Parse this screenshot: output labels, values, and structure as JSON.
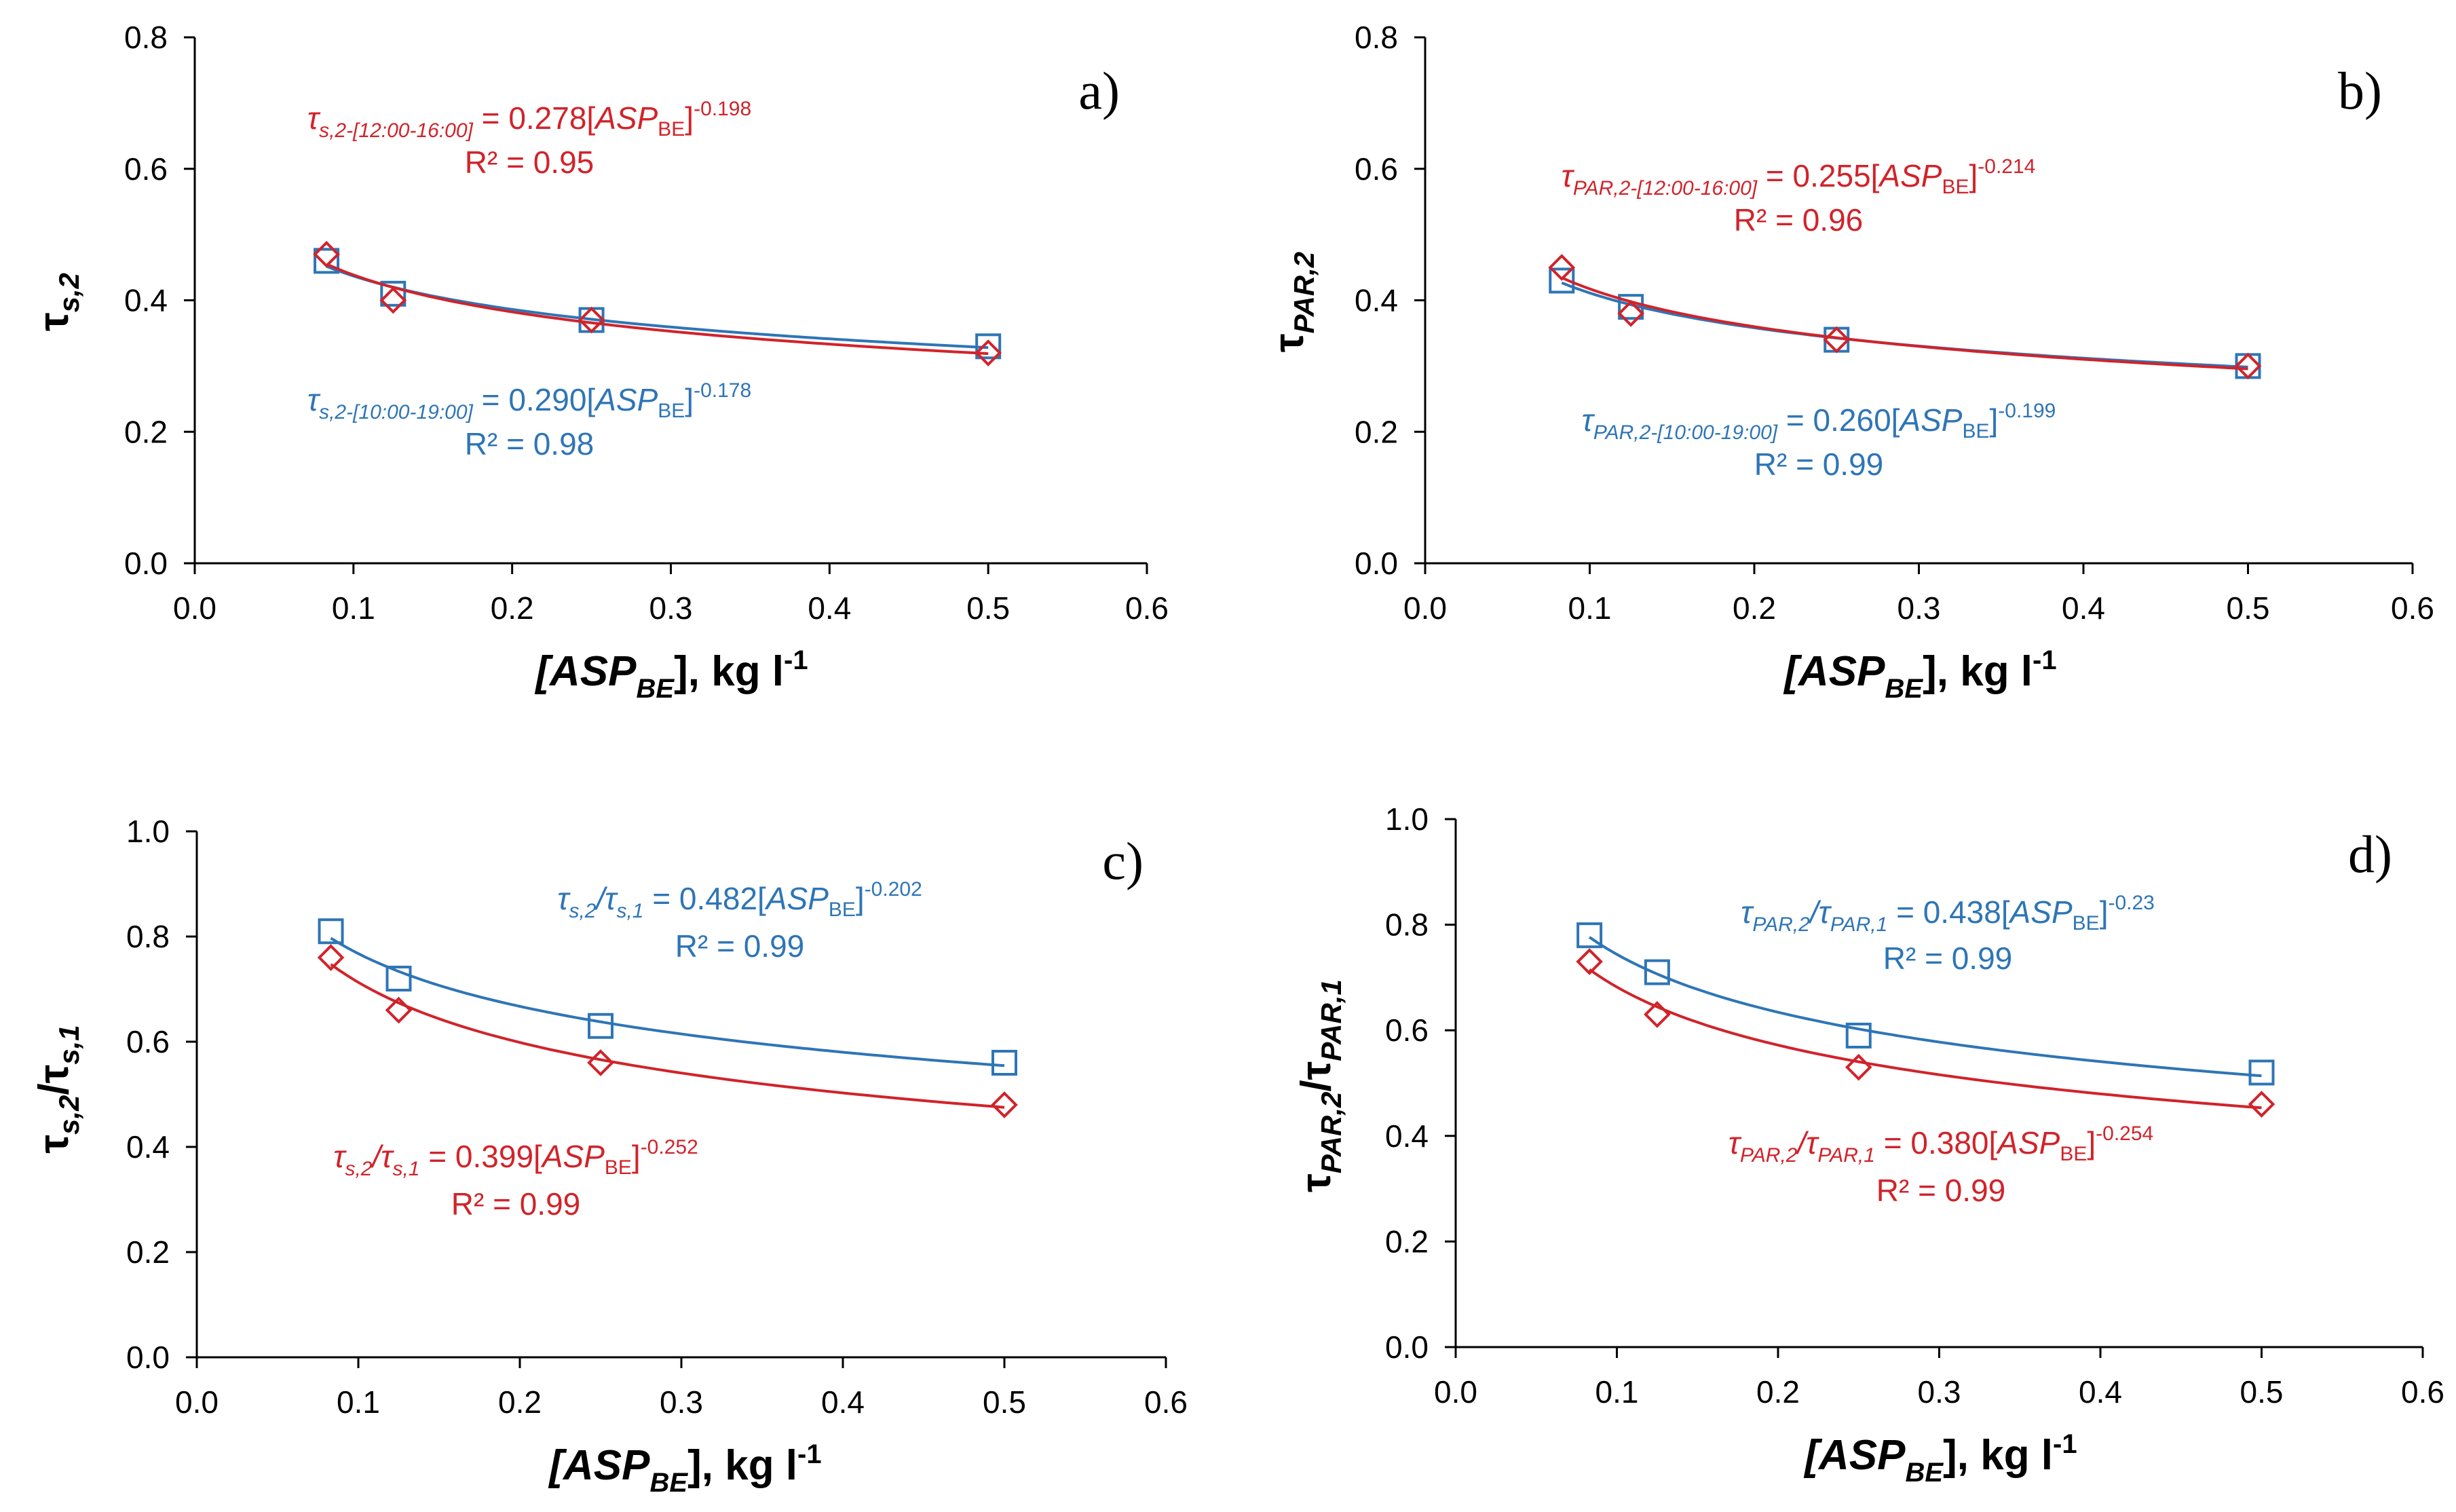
{
  "colors": {
    "red": "#d1232a",
    "blue": "#2e75b6",
    "axis": "#000000"
  },
  "chart_data": [
    {
      "type": "scatter",
      "panel": "a)",
      "ylabel_main": "τ",
      "ylabel_sub": "s,2",
      "ylabel_denom_main": "",
      "ylabel_denom_sub": "",
      "xlabel_main": "[ASP",
      "xlabel_sub": "BE",
      "xlabel_tail": "], kg l",
      "xlabel_sup": "-1",
      "xlim": [
        0,
        0.6
      ],
      "ylim": [
        0,
        0.8
      ],
      "xticks": [
        "0.0",
        "0.1",
        "0.2",
        "0.3",
        "0.4",
        "0.5",
        "0.6"
      ],
      "yticks": [
        "0.0",
        "0.2",
        "0.4",
        "0.6",
        "0.8"
      ],
      "series": [
        {
          "name": "10:00-19:00",
          "color": "blue",
          "marker": "square",
          "x": [
            0.083,
            0.125,
            0.25,
            0.5
          ],
          "y": [
            0.46,
            0.41,
            0.37,
            0.33
          ],
          "fit": {
            "a": 0.29,
            "b": -0.178
          }
        },
        {
          "name": "12:00-16:00",
          "color": "red",
          "marker": "diamond",
          "x": [
            0.083,
            0.125,
            0.25,
            0.5
          ],
          "y": [
            0.47,
            0.4,
            0.37,
            0.32
          ],
          "fit": {
            "a": 0.278,
            "b": -0.198
          }
        }
      ],
      "annotations": [
        {
          "color": "red",
          "tau": "τ",
          "sub1": "s,2-[12:00-16:00]",
          "mid": "",
          "sub2": "",
          "eq": " = 0.278[",
          "asp": "ASP",
          "asp_sub": "BE",
          "close": "]",
          "exp": "-0.198",
          "r2": "R² = 0.95"
        },
        {
          "color": "blue",
          "tau": "τ",
          "sub1": "s,2-[10:00-19:00]",
          "mid": "",
          "sub2": "",
          "eq": " = 0.290[",
          "asp": "ASP",
          "asp_sub": "BE",
          "close": "]",
          "exp": "-0.178",
          "r2": "R² = 0.98"
        }
      ]
    },
    {
      "type": "scatter",
      "panel": "b)",
      "ylabel_main": "τ",
      "ylabel_sub": "PAR,2",
      "ylabel_denom_main": "",
      "ylabel_denom_sub": "",
      "xlabel_main": "[ASP",
      "xlabel_sub": "BE",
      "xlabel_tail": "], kg l",
      "xlabel_sup": "-1",
      "xlim": [
        0,
        0.6
      ],
      "ylim": [
        0,
        0.8
      ],
      "xticks": [
        "0.0",
        "0.1",
        "0.2",
        "0.3",
        "0.4",
        "0.5",
        "0.6"
      ],
      "yticks": [
        "0.0",
        "0.2",
        "0.4",
        "0.6",
        "0.8"
      ],
      "series": [
        {
          "name": "10:00-19:00",
          "color": "blue",
          "marker": "square",
          "x": [
            0.083,
            0.125,
            0.25,
            0.5
          ],
          "y": [
            0.43,
            0.39,
            0.34,
            0.3
          ],
          "fit": {
            "a": 0.26,
            "b": -0.199
          }
        },
        {
          "name": "12:00-16:00",
          "color": "red",
          "marker": "diamond",
          "x": [
            0.083,
            0.125,
            0.25,
            0.5
          ],
          "y": [
            0.45,
            0.38,
            0.34,
            0.3
          ],
          "fit": {
            "a": 0.255,
            "b": -0.214
          }
        }
      ],
      "annotations": [
        {
          "color": "red",
          "tau": "τ",
          "sub1": "PAR,2-[12:00-16:00]",
          "mid": "",
          "sub2": "",
          "eq": " = 0.255[",
          "asp": "ASP",
          "asp_sub": "BE",
          "close": "]",
          "exp": "-0.214",
          "r2": "R² = 0.96"
        },
        {
          "color": "blue",
          "tau": "τ",
          "sub1": "PAR,2-[10:00-19:00]",
          "mid": "",
          "sub2": "",
          "eq": " = 0.260[",
          "asp": "ASP",
          "asp_sub": "BE",
          "close": "]",
          "exp": "-0.199",
          "r2": "R² = 0.99"
        }
      ]
    },
    {
      "type": "scatter",
      "panel": "c)",
      "ylabel_main": "τ",
      "ylabel_sub": "s,2",
      "ylabel_denom_main": "/τ",
      "ylabel_denom_sub": "s,1",
      "xlabel_main": "[ASP",
      "xlabel_sub": "BE",
      "xlabel_tail": "], kg l",
      "xlabel_sup": "-1",
      "xlim": [
        0,
        0.6
      ],
      "ylim": [
        0,
        1.0
      ],
      "xticks": [
        "0.0",
        "0.1",
        "0.2",
        "0.3",
        "0.4",
        "0.5",
        "0.6"
      ],
      "yticks": [
        "0.0",
        "0.2",
        "0.4",
        "0.6",
        "0.8",
        "1.0"
      ],
      "series": [
        {
          "name": "blue",
          "color": "blue",
          "marker": "square",
          "x": [
            0.083,
            0.125,
            0.25,
            0.5
          ],
          "y": [
            0.81,
            0.72,
            0.63,
            0.56
          ],
          "fit": {
            "a": 0.482,
            "b": -0.202
          }
        },
        {
          "name": "red",
          "color": "red",
          "marker": "diamond",
          "x": [
            0.083,
            0.125,
            0.25,
            0.5
          ],
          "y": [
            0.76,
            0.66,
            0.56,
            0.48
          ],
          "fit": {
            "a": 0.399,
            "b": -0.252
          }
        }
      ],
      "annotations": [
        {
          "color": "blue",
          "tau": "τ",
          "sub1": "s,2",
          "mid": "/τ",
          "sub2": "s,1",
          "eq": " = 0.482[",
          "asp": "ASP",
          "asp_sub": "BE",
          "close": "]",
          "exp": "-0.202",
          "r2": "R² = 0.99"
        },
        {
          "color": "red",
          "tau": "τ",
          "sub1": "s,2",
          "mid": "/τ",
          "sub2": "s,1",
          "eq": " = 0.399[",
          "asp": "ASP",
          "asp_sub": "BE",
          "close": "]",
          "exp": "-0.252",
          "r2": "R² = 0.99"
        }
      ]
    },
    {
      "type": "scatter",
      "panel": "d)",
      "ylabel_main": "τ",
      "ylabel_sub": "PAR,2",
      "ylabel_denom_main": "/τ",
      "ylabel_denom_sub": "PAR,1",
      "xlabel_main": "[ASP",
      "xlabel_sub": "BE",
      "xlabel_tail": "], kg l",
      "xlabel_sup": "-1",
      "xlim": [
        0,
        0.6
      ],
      "ylim": [
        0,
        1.0
      ],
      "xticks": [
        "0.0",
        "0.1",
        "0.2",
        "0.3",
        "0.4",
        "0.5",
        "0.6"
      ],
      "yticks": [
        "0.0",
        "0.2",
        "0.4",
        "0.6",
        "0.8",
        "1.0"
      ],
      "series": [
        {
          "name": "blue",
          "color": "blue",
          "marker": "square",
          "x": [
            0.083,
            0.125,
            0.25,
            0.5
          ],
          "y": [
            0.78,
            0.71,
            0.59,
            0.52
          ],
          "fit": {
            "a": 0.438,
            "b": -0.23
          }
        },
        {
          "name": "red",
          "color": "red",
          "marker": "diamond",
          "x": [
            0.083,
            0.125,
            0.25,
            0.5
          ],
          "y": [
            0.73,
            0.63,
            0.53,
            0.46
          ],
          "fit": {
            "a": 0.38,
            "b": -0.254
          }
        }
      ],
      "annotations": [
        {
          "color": "blue",
          "tau": "τ",
          "sub1": "PAR,2",
          "mid": "/τ",
          "sub2": "PAR,1",
          "eq": " = 0.438[",
          "asp": "ASP",
          "asp_sub": "BE",
          "close": "]",
          "exp": "-0.23",
          "r2": "R² = 0.99"
        },
        {
          "color": "red",
          "tau": "τ",
          "sub1": "PAR,2",
          "mid": "/τ",
          "sub2": "PAR,1",
          "eq": " = 0.380[",
          "asp": "ASP",
          "asp_sub": "BE",
          "close": "]",
          "exp": "-0.254",
          "r2": "R² = 0.99"
        }
      ]
    }
  ]
}
